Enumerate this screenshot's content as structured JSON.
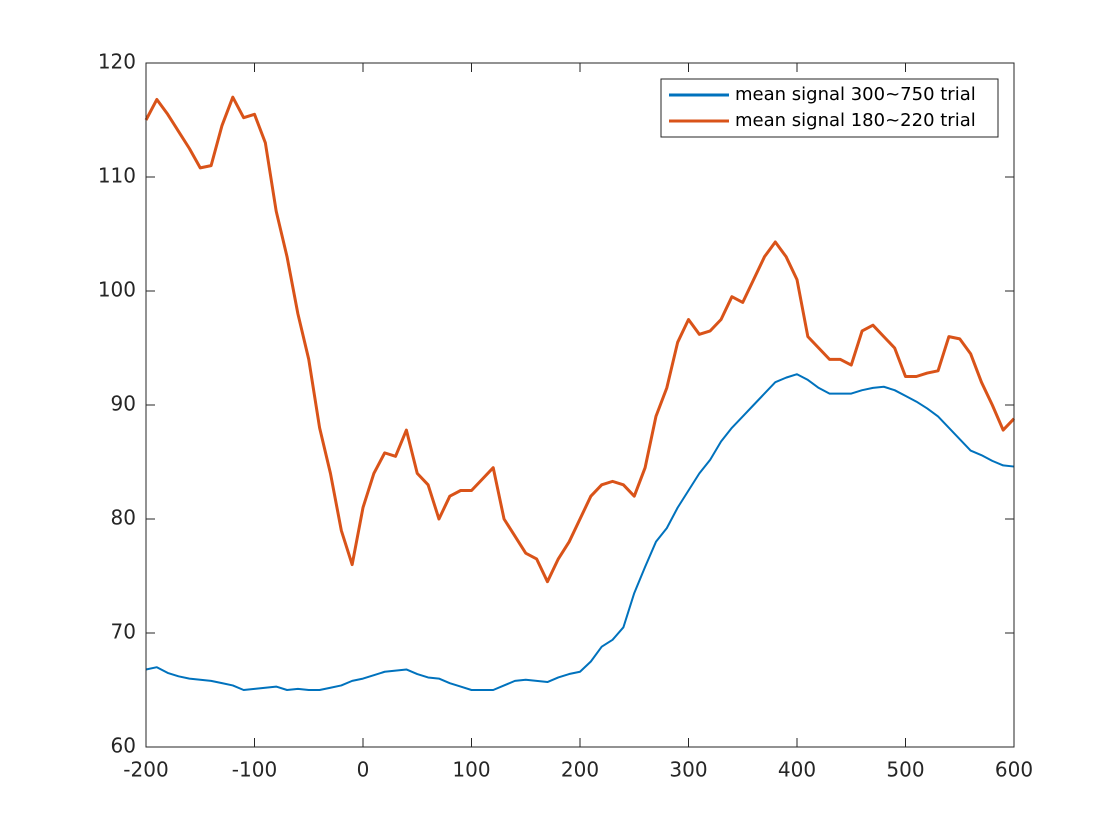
{
  "chart_data": {
    "type": "line",
    "x": [
      -200,
      -190,
      -180,
      -170,
      -160,
      -150,
      -140,
      -130,
      -120,
      -110,
      -100,
      -90,
      -80,
      -70,
      -60,
      -50,
      -40,
      -30,
      -20,
      -10,
      0,
      10,
      20,
      30,
      40,
      50,
      60,
      70,
      80,
      90,
      100,
      110,
      120,
      130,
      140,
      150,
      160,
      170,
      180,
      190,
      200,
      210,
      220,
      230,
      240,
      250,
      260,
      270,
      280,
      290,
      300,
      310,
      320,
      330,
      340,
      350,
      360,
      370,
      380,
      390,
      400,
      410,
      420,
      430,
      440,
      450,
      460,
      470,
      480,
      490,
      500,
      510,
      520,
      530,
      540,
      550,
      560,
      570,
      580,
      590,
      600
    ],
    "series": [
      {
        "name": "mean signal 300~750 trial",
        "color": "#0072bd",
        "values": [
          66.8,
          67.0,
          66.5,
          66.2,
          66.0,
          65.9,
          65.8,
          65.6,
          65.4,
          65.0,
          65.1,
          65.2,
          65.3,
          65.0,
          65.1,
          65.0,
          65.0,
          65.2,
          65.4,
          65.8,
          66.0,
          66.3,
          66.6,
          66.7,
          66.8,
          66.4,
          66.1,
          66.0,
          65.6,
          65.3,
          65.0,
          65.0,
          65.0,
          65.4,
          65.8,
          65.9,
          65.8,
          65.7,
          66.1,
          66.4,
          66.6,
          67.5,
          68.8,
          69.4,
          70.5,
          73.5,
          75.8,
          78.0,
          79.2,
          81.0,
          82.5,
          84.0,
          85.2,
          86.8,
          88.0,
          89.0,
          90.0,
          91.0,
          92.0,
          92.4,
          92.7,
          92.2,
          91.5,
          91.0,
          91.0,
          91.0,
          91.3,
          91.5,
          91.6,
          91.3,
          90.8,
          90.3,
          89.7,
          89.0,
          88.0,
          87.0,
          86.0,
          85.6,
          85.1,
          84.7,
          84.6
        ]
      },
      {
        "name": "mean signal 180~220 trial",
        "color": "#d95319",
        "values": [
          115.0,
          116.8,
          115.5,
          114.0,
          112.5,
          110.8,
          111.0,
          114.5,
          117.0,
          115.2,
          115.5,
          113.0,
          107.0,
          103.0,
          98.0,
          94.0,
          88.0,
          84.0,
          79.0,
          76.0,
          81.0,
          84.0,
          85.8,
          85.5,
          87.8,
          84.0,
          83.0,
          80.0,
          82.0,
          82.5,
          82.5,
          83.5,
          84.5,
          80.0,
          78.5,
          77.0,
          76.5,
          74.5,
          76.5,
          78.0,
          80.0,
          82.0,
          83.0,
          83.3,
          83.0,
          82.0,
          84.5,
          89.0,
          91.5,
          95.5,
          97.5,
          96.2,
          96.5,
          97.5,
          99.5,
          99.0,
          101.0,
          103.0,
          104.3,
          103.0,
          101.0,
          96.0,
          95.0,
          94.0,
          94.0,
          93.5,
          96.5,
          97.0,
          96.0,
          95.0,
          92.5,
          92.5,
          92.8,
          93.0,
          96.0,
          95.8,
          94.5,
          92.0,
          90.0,
          87.8,
          88.8
        ]
      }
    ],
    "xlim": [
      -200,
      600
    ],
    "xticks": [
      -200,
      -100,
      0,
      100,
      200,
      300,
      400,
      500,
      600
    ],
    "ylim": [
      60,
      120
    ],
    "yticks": [
      60,
      70,
      80,
      90,
      100,
      110,
      120
    ],
    "legend": "northeast"
  }
}
